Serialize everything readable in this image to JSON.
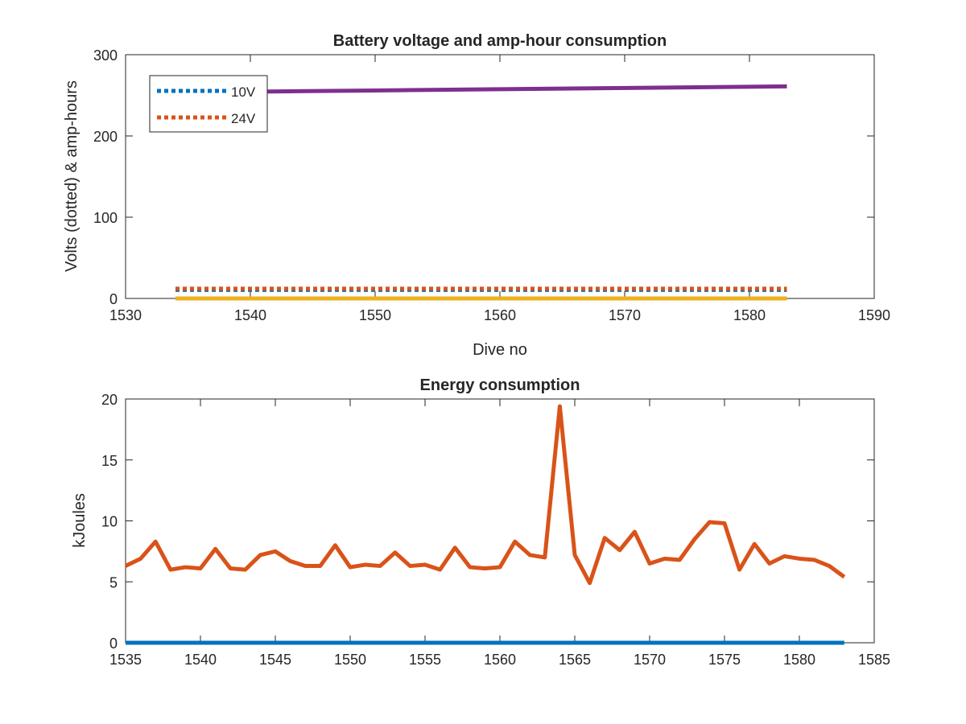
{
  "chart_data": [
    {
      "type": "line",
      "title": "Battery voltage and amp-hour consumption",
      "xlabel": "Dive no",
      "ylabel": "Volts (dotted) & amp-hours",
      "xlim": [
        1530,
        1590
      ],
      "ylim": [
        0,
        300
      ],
      "xticks": [
        "1530",
        "1540",
        "1550",
        "1560",
        "1570",
        "1580",
        "1590"
      ],
      "yticks": [
        "0",
        "100",
        "200",
        "300"
      ],
      "grid": false,
      "legend_position": "top-left",
      "series": [
        {
          "name": "10V",
          "style": "dotted",
          "color": "#0072BD",
          "x": [
            1534,
            1583
          ],
          "y": [
            10.5,
            10.5
          ]
        },
        {
          "name": "24V",
          "style": "dotted",
          "color": "#D95319",
          "x": [
            1534,
            1583
          ],
          "y": [
            12,
            12
          ]
        },
        {
          "style": "solid",
          "color": "#EDB120",
          "x": [
            1534,
            1583
          ],
          "y": [
            0,
            0
          ]
        },
        {
          "style": "solid",
          "color": "#7E2F8E",
          "x": [
            1534,
            1540,
            1550,
            1560,
            1570,
            1583
          ],
          "y": [
            253,
            254.5,
            256,
            257.5,
            259,
            261
          ]
        }
      ]
    },
    {
      "type": "line",
      "title": "Energy consumption",
      "xlabel": "",
      "ylabel": "kJoules",
      "xlim": [
        1535,
        1585
      ],
      "ylim": [
        0,
        20
      ],
      "xticks": [
        "1535",
        "1540",
        "1545",
        "1550",
        "1555",
        "1560",
        "1565",
        "1570",
        "1575",
        "1580",
        "1585"
      ],
      "yticks": [
        "0",
        "5",
        "10",
        "15",
        "20"
      ],
      "grid": false,
      "series": [
        {
          "style": "solid",
          "color": "#0072BD",
          "x": [
            1535,
            1583
          ],
          "y": [
            0,
            0
          ]
        },
        {
          "style": "solid",
          "color": "#D95319",
          "x": [
            1535,
            1536,
            1537,
            1538,
            1539,
            1540,
            1541,
            1542,
            1543,
            1544,
            1545,
            1546,
            1547,
            1548,
            1549,
            1550,
            1551,
            1552,
            1553,
            1554,
            1555,
            1556,
            1557,
            1558,
            1559,
            1560,
            1561,
            1562,
            1563,
            1564,
            1565,
            1566,
            1567,
            1568,
            1569,
            1570,
            1571,
            1572,
            1573,
            1574,
            1575,
            1576,
            1577,
            1578,
            1579,
            1580,
            1581,
            1582,
            1583
          ],
          "y": [
            6.3,
            6.9,
            8.3,
            6.0,
            6.2,
            6.1,
            7.7,
            6.1,
            6.0,
            7.2,
            7.5,
            6.7,
            6.3,
            6.3,
            8.0,
            6.2,
            6.4,
            6.3,
            7.4,
            6.3,
            6.4,
            6.0,
            7.8,
            6.2,
            6.1,
            6.2,
            8.3,
            7.2,
            7.0,
            19.4,
            7.2,
            4.9,
            8.6,
            7.6,
            9.1,
            6.5,
            6.9,
            6.8,
            8.5,
            9.9,
            9.8,
            6.0,
            8.1,
            6.5,
            7.1,
            6.9,
            6.8,
            6.3,
            5.4
          ]
        }
      ]
    }
  ]
}
